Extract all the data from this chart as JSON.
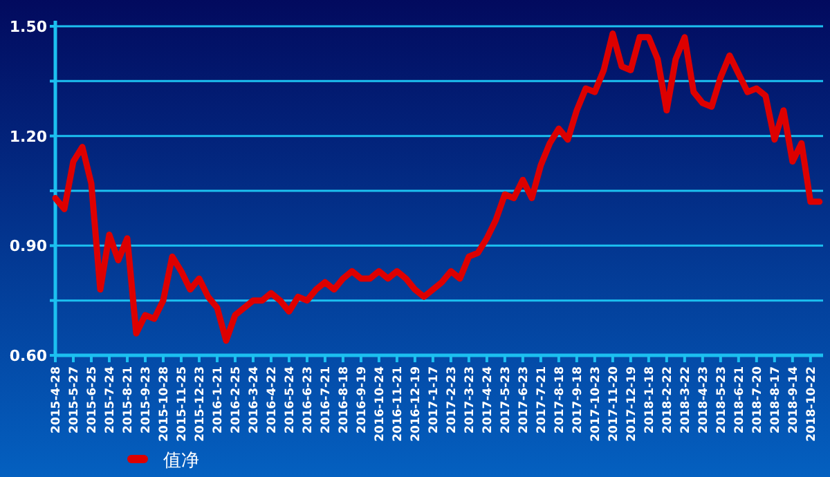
{
  "chart_data": {
    "type": "line",
    "categories": [
      "2015-4-28",
      null,
      "2015-5-27",
      null,
      "2015-6-25",
      null,
      "2015-7-24",
      null,
      "2015-8-21",
      null,
      "2015-9-23",
      null,
      "2015-10-28",
      null,
      "2015-11-25",
      null,
      "2015-12-23",
      null,
      "2016-1-21",
      null,
      "2016-2-25",
      null,
      "2016-3-24",
      null,
      "2016-4-22",
      null,
      "2016-5-24",
      null,
      "2016-6-23",
      null,
      "2016-7-21",
      null,
      "2016-8-18",
      null,
      "2016-9-19",
      null,
      "2016-10-24",
      null,
      "2016-11-21",
      null,
      "2016-12-19",
      null,
      "2017-1-17",
      null,
      "2017-2-23",
      null,
      "2017-3-23",
      null,
      "2017-4-24",
      null,
      "2017-5-23",
      null,
      "2017-6-23",
      null,
      "2017-7-21",
      null,
      "2017-8-18",
      null,
      "2017-9-18",
      null,
      "2017-10-23",
      null,
      "2017-11-20",
      null,
      "2017-12-19",
      null,
      "2018-1-18",
      null,
      "2018-2-22",
      null,
      "2018-3-22",
      null,
      "2018-4-23",
      null,
      "2018-5-23",
      null,
      "2018-6-21",
      null,
      "2018-7-20",
      null,
      "2018-8-17",
      null,
      "2018-9-14",
      null,
      "2018-10-22",
      null
    ],
    "series": [
      {
        "name": "值净",
        "color": "#dd0000",
        "values": [
          1.03,
          1.0,
          1.13,
          1.17,
          1.07,
          0.78,
          0.93,
          0.86,
          0.92,
          0.66,
          0.71,
          0.7,
          0.75,
          0.87,
          0.83,
          0.78,
          0.81,
          0.76,
          0.73,
          0.64,
          0.71,
          0.73,
          0.75,
          0.75,
          0.77,
          0.75,
          0.72,
          0.76,
          0.75,
          0.78,
          0.8,
          0.78,
          0.81,
          0.83,
          0.81,
          0.81,
          0.83,
          0.81,
          0.83,
          0.81,
          0.78,
          0.76,
          0.78,
          0.8,
          0.83,
          0.81,
          0.87,
          0.88,
          0.92,
          0.97,
          1.04,
          1.03,
          1.08,
          1.03,
          1.12,
          1.18,
          1.22,
          1.19,
          1.27,
          1.33,
          1.32,
          1.38,
          1.48,
          1.39,
          1.38,
          1.47,
          1.47,
          1.41,
          1.27,
          1.41,
          1.47,
          1.32,
          1.29,
          1.28,
          1.36,
          1.42,
          1.37,
          1.32,
          1.33,
          1.31,
          1.19,
          1.27,
          1.13,
          1.18,
          1.02,
          1.02
        ]
      }
    ],
    "ylim": [
      0.6,
      1.5
    ],
    "yticks": [
      {
        "value": 0.6,
        "label": "0.60"
      },
      {
        "value": 0.75,
        "label": null
      },
      {
        "value": 0.9,
        "label": "0.90"
      },
      {
        "value": 1.05,
        "label": null
      },
      {
        "value": 1.2,
        "label": "1.20"
      },
      {
        "value": 1.35,
        "label": null
      },
      {
        "value": 1.5,
        "label": "1.50"
      }
    ],
    "grid": "y",
    "legend": "bottom",
    "marker": "none",
    "line_style": "solid"
  }
}
